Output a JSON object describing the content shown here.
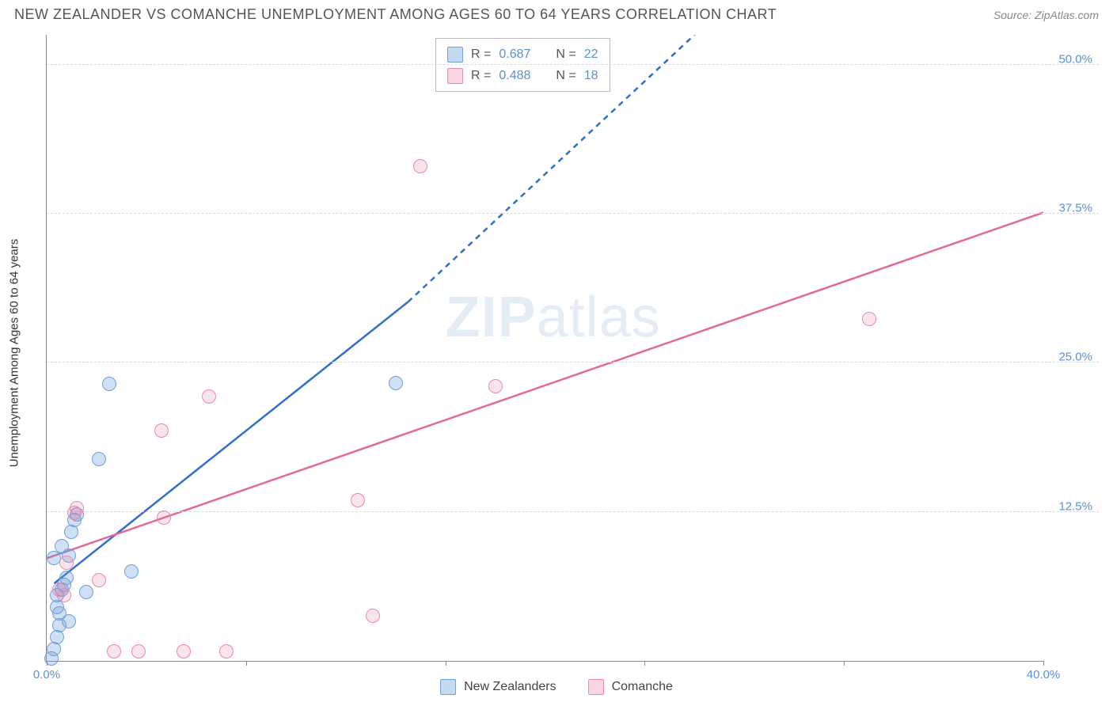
{
  "title": "NEW ZEALANDER VS COMANCHE UNEMPLOYMENT AMONG AGES 60 TO 64 YEARS CORRELATION CHART",
  "source_label": "Source: ",
  "source_value": "ZipAtlas.com",
  "ylabel": "Unemployment Among Ages 60 to 64 years",
  "watermark_a": "ZIP",
  "watermark_b": "atlas",
  "chart": {
    "type": "scatter",
    "xlim": [
      0,
      40
    ],
    "ylim": [
      0,
      52.5
    ],
    "x_ticks": [
      0,
      8,
      16,
      24,
      32,
      40
    ],
    "x_tick_labels": [
      "0.0%",
      "",
      "",
      "",
      "",
      "40.0%"
    ],
    "y_gridlines": [
      12.5,
      25.0,
      37.5,
      50.0
    ],
    "y_tick_labels": [
      "12.5%",
      "25.0%",
      "37.5%",
      "50.0%"
    ],
    "background_color": "#ffffff",
    "grid_color": "#d8d8d8",
    "axis_color": "#888888",
    "tick_label_color": "#5b8fd6",
    "series": [
      {
        "name": "New Zealanders",
        "color_fill": "rgba(110,160,220,0.32)",
        "color_stroke": "#6ea0dc",
        "line_color": "#2e6fc9",
        "R": "0.687",
        "N": "22",
        "points": [
          [
            0.2,
            0.2
          ],
          [
            0.3,
            1.0
          ],
          [
            0.4,
            2.0
          ],
          [
            0.5,
            3.0
          ],
          [
            0.5,
            4.0
          ],
          [
            0.4,
            5.5
          ],
          [
            0.6,
            6.0
          ],
          [
            0.7,
            6.4
          ],
          [
            0.8,
            7.0
          ],
          [
            0.9,
            8.8
          ],
          [
            0.6,
            9.6
          ],
          [
            1.0,
            10.8
          ],
          [
            1.1,
            11.8
          ],
          [
            1.2,
            12.3
          ],
          [
            3.4,
            7.5
          ],
          [
            2.1,
            16.9
          ],
          [
            2.5,
            23.2
          ],
          [
            14.0,
            23.3
          ],
          [
            1.6,
            5.8
          ],
          [
            0.9,
            3.3
          ],
          [
            0.3,
            8.6
          ],
          [
            0.4,
            4.5
          ]
        ],
        "trend_solid": {
          "x1": 0.3,
          "y1": 6.5,
          "x2": 14.5,
          "y2": 30.1
        },
        "trend_dash": {
          "x1": 14.5,
          "y1": 30.1,
          "x2": 26.0,
          "y2": 52.5
        }
      },
      {
        "name": "Comanche",
        "color_fill": "rgba(230,120,160,0.20)",
        "color_stroke": "#e88aa8",
        "line_color": "#e36a94",
        "R": "0.488",
        "N": "18",
        "points": [
          [
            0.5,
            6.0
          ],
          [
            0.7,
            5.5
          ],
          [
            0.8,
            8.2
          ],
          [
            1.1,
            12.4
          ],
          [
            1.2,
            12.8
          ],
          [
            2.1,
            6.8
          ],
          [
            2.7,
            0.8
          ],
          [
            3.7,
            0.8
          ],
          [
            4.7,
            12.0
          ],
          [
            5.5,
            0.8
          ],
          [
            7.2,
            0.8
          ],
          [
            4.6,
            19.3
          ],
          [
            6.5,
            22.2
          ],
          [
            13.1,
            3.8
          ],
          [
            12.5,
            13.5
          ],
          [
            18.0,
            23.0
          ],
          [
            15.0,
            41.5
          ],
          [
            33.0,
            28.7
          ]
        ],
        "trend_solid": {
          "x1": 0.0,
          "y1": 8.6,
          "x2": 40.0,
          "y2": 37.6
        }
      }
    ]
  },
  "legend": {
    "R_prefix": "R = ",
    "N_prefix": "N = "
  },
  "bottom_legend": [
    "New Zealanders",
    "Comanche"
  ]
}
